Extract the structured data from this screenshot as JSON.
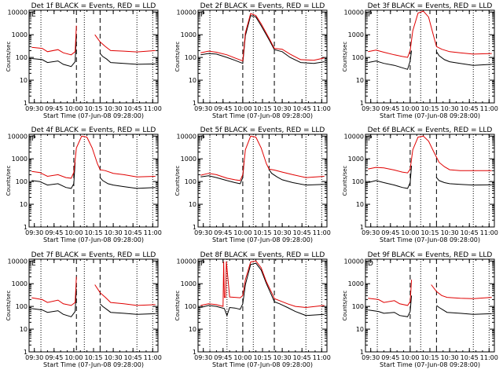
{
  "colors": {
    "events": "#000000",
    "lld": "#e00000",
    "axis": "#000000"
  },
  "common": {
    "ylabel": "Counts/sec",
    "xlabel": "Start Time (07-Jun-08 09:28:00)",
    "yticks": [
      "1",
      "10",
      "100",
      "1000",
      "10000"
    ],
    "ylim": [
      1,
      12000
    ],
    "yscale": "log",
    "xlim_minutes": [
      -2,
      96
    ]
  },
  "chart_data": [
    {
      "type": "line",
      "title": "Det 1f BLACK = Events, RED = LLD",
      "letter": "E",
      "xticks": [
        "09:30",
        "09:45",
        "10:00",
        "10:15",
        "10:30",
        "10:45",
        "11:00"
      ],
      "xticks_min": [
        2,
        17,
        32,
        47,
        62,
        77,
        92
      ],
      "dotted_x": [
        7,
        40,
        80,
        92
      ],
      "dashed_x": [
        34,
        52
      ],
      "series": [
        {
          "name": "Events",
          "color": "black",
          "x": [
            0,
            8,
            12,
            20,
            24,
            30,
            33,
            34
          ],
          "y": [
            90,
            80,
            60,
            70,
            50,
            40,
            65,
            900
          ],
          "x2": [
            52,
            54,
            57,
            60,
            70,
            80,
            94
          ],
          "y2": [
            150,
            110,
            85,
            60,
            55,
            50,
            52
          ]
        },
        {
          "name": "LLD",
          "color": "red",
          "x": [
            0,
            8,
            12,
            20,
            24,
            30,
            33,
            34
          ],
          "y": [
            280,
            250,
            180,
            220,
            160,
            130,
            180,
            2500
          ],
          "x2": [
            48,
            52,
            56,
            60,
            70,
            80,
            94
          ],
          "y2": [
            1000,
            480,
            300,
            200,
            190,
            175,
            200
          ]
        }
      ]
    },
    {
      "type": "line",
      "title": "Det 2f BLACK = Events, RED = LLD",
      "letter": "P",
      "xticks": [
        "09:30",
        "09:45",
        "10:00",
        "10:15",
        "10:30",
        "10:45",
        "11:00"
      ],
      "xticks_min": [
        2,
        17,
        32,
        47,
        62,
        77,
        92
      ],
      "dotted_x": [
        7,
        40,
        80,
        92
      ],
      "dashed_x": [
        32,
        56
      ],
      "series": [
        {
          "name": "Events",
          "color": "black",
          "x": [
            0,
            6,
            12,
            20,
            26,
            32,
            34,
            38,
            42,
            46,
            52,
            56,
            62,
            68,
            76,
            86,
            94
          ],
          "y": [
            130,
            150,
            140,
            100,
            75,
            55,
            900,
            7000,
            6000,
            2500,
            600,
            220,
            180,
            100,
            60,
            55,
            65
          ]
        },
        {
          "name": "LLD",
          "color": "red",
          "x": [
            0,
            6,
            12,
            20,
            26,
            32,
            34,
            38,
            42,
            46,
            52,
            56,
            62,
            68,
            76,
            86,
            94
          ],
          "y": [
            160,
            190,
            170,
            130,
            95,
            70,
            1200,
            8500,
            7000,
            3000,
            700,
            250,
            230,
            140,
            80,
            75,
            95
          ]
        }
      ]
    },
    {
      "type": "line",
      "title": "Det 3f BLACK = Events, RED = LLD",
      "letter": "P",
      "xticks": [
        "09:30",
        "09:45",
        "10:00",
        "10:15",
        "10:30",
        "10:45",
        "11:00"
      ],
      "xticks_min": [
        2,
        17,
        32,
        47,
        62,
        77,
        92
      ],
      "dotted_x": [
        7,
        40,
        80,
        92
      ],
      "dashed_x": [
        32,
        52
      ],
      "series": [
        {
          "name": "Events",
          "color": "black",
          "x": [
            0,
            6,
            12,
            20,
            26,
            30,
            32,
            33
          ],
          "y": [
            60,
            70,
            55,
            45,
            35,
            30,
            70,
            200
          ],
          "x2": [
            52,
            54,
            58,
            62,
            70,
            80,
            94
          ],
          "y2": [
            180,
            120,
            80,
            65,
            55,
            45,
            50
          ]
        },
        {
          "name": "LLD",
          "color": "red",
          "x": [
            0,
            6,
            12,
            20,
            26,
            30,
            32,
            34,
            38,
            42,
            46,
            50,
            52,
            56,
            62,
            70,
            80,
            94
          ],
          "y": [
            180,
            210,
            170,
            130,
            110,
            100,
            200,
            1500,
            9000,
            11000,
            6000,
            800,
            300,
            230,
            180,
            160,
            140,
            150
          ]
        }
      ]
    },
    {
      "type": "line",
      "title": "Det 4f BLACK = Events, RED = LLD",
      "letter": "P",
      "xticks": [
        "09:30",
        "09:45",
        "10:00",
        "10:15",
        "10:30",
        "10:45",
        "11:00"
      ],
      "xticks_min": [
        2,
        17,
        32,
        47,
        62,
        77,
        92
      ],
      "dotted_x": [
        7,
        40,
        80,
        92
      ],
      "dashed_x": [
        32,
        52
      ],
      "series": [
        {
          "name": "Events",
          "color": "black",
          "x": [
            0,
            6,
            12,
            20,
            26,
            30,
            32,
            33
          ],
          "y": [
            110,
            100,
            70,
            80,
            55,
            50,
            80,
            700
          ],
          "x2": [
            52,
            54,
            58,
            62,
            70,
            80,
            94
          ],
          "y2": [
            150,
            110,
            80,
            70,
            60,
            50,
            55
          ]
        },
        {
          "name": "LLD",
          "color": "red",
          "x": [
            0,
            6,
            12,
            20,
            26,
            30,
            32,
            34,
            38,
            42,
            46,
            50,
            52,
            56,
            62,
            70,
            80,
            94
          ],
          "y": [
            280,
            250,
            170,
            200,
            150,
            140,
            250,
            3000,
            10000,
            9000,
            3000,
            600,
            330,
            300,
            230,
            200,
            160,
            170
          ]
        }
      ]
    },
    {
      "type": "line",
      "title": "Det 5f BLACK = Events, RED = LLD",
      "letter": "P",
      "xticks": [
        "09:30",
        "09:45",
        "10:00",
        "10:15",
        "10:30",
        "10:45",
        "11:00"
      ],
      "xticks_min": [
        2,
        17,
        32,
        47,
        62,
        77,
        92
      ],
      "dotted_x": [
        7,
        40,
        80,
        92
      ],
      "dashed_x": [
        32,
        52
      ],
      "series": [
        {
          "name": "Events",
          "color": "black",
          "x": [
            0,
            6,
            12,
            20,
            26,
            30,
            32,
            33
          ],
          "y": [
            160,
            180,
            150,
            110,
            90,
            80,
            150,
            800
          ],
          "x2": [
            52,
            54,
            58,
            62,
            70,
            80,
            94
          ],
          "y2": [
            330,
            230,
            160,
            120,
            90,
            70,
            75
          ]
        },
        {
          "name": "LLD",
          "color": "red",
          "x": [
            0,
            6,
            12,
            20,
            26,
            30,
            32,
            34,
            38,
            42,
            46,
            50,
            52,
            56,
            62,
            70,
            80,
            94
          ],
          "y": [
            190,
            230,
            200,
            140,
            120,
            110,
            200,
            2500,
            10000,
            9000,
            3000,
            600,
            350,
            320,
            260,
            200,
            150,
            170
          ]
        }
      ]
    },
    {
      "type": "line",
      "title": "Det 6f BLACK = Events, RED = LLD",
      "letter": "P",
      "xticks": [
        "09:30",
        "09:45",
        "10:00",
        "10:15",
        "10:30",
        "10:45",
        "11:00"
      ],
      "xticks_min": [
        2,
        17,
        32,
        47,
        62,
        77,
        92
      ],
      "dotted_x": [
        7,
        40,
        80,
        92
      ],
      "dashed_x": [
        32,
        52
      ],
      "series": [
        {
          "name": "Events",
          "color": "black",
          "x": [
            0,
            6,
            12,
            20,
            26,
            30,
            32,
            33
          ],
          "y": [
            90,
            110,
            90,
            70,
            55,
            50,
            90,
            500
          ],
          "x2": [
            52,
            54,
            58,
            62,
            70,
            80,
            94
          ],
          "y2": [
            150,
            110,
            90,
            80,
            75,
            70,
            72
          ]
        },
        {
          "name": "LLD",
          "color": "red",
          "x": [
            0,
            6,
            12,
            20,
            26,
            30,
            32,
            34,
            38,
            42,
            46,
            50,
            54,
            58,
            62,
            70,
            80,
            94
          ],
          "y": [
            360,
            420,
            400,
            320,
            260,
            240,
            350,
            2500,
            9000,
            10000,
            6000,
            2000,
            700,
            450,
            330,
            300,
            300,
            300
          ]
        }
      ]
    },
    {
      "type": "line",
      "title": "Det 7f BLACK = Events, RED = LLD",
      "letter": "E",
      "xticks": [
        "09:30",
        "09:45",
        "10:00",
        "10:15",
        "10:30",
        "10:45",
        "11:00"
      ],
      "xticks_min": [
        2,
        17,
        32,
        47,
        62,
        77,
        92
      ],
      "dotted_x": [
        7,
        40,
        80,
        92
      ],
      "dashed_x": [
        34,
        52
      ],
      "series": [
        {
          "name": "Events",
          "color": "black",
          "x": [
            0,
            8,
            12,
            20,
            24,
            30,
            33,
            34
          ],
          "y": [
            80,
            70,
            55,
            65,
            45,
            35,
            60,
            600
          ],
          "x2": [
            52,
            54,
            57,
            60,
            70,
            80,
            94
          ],
          "y2": [
            130,
            100,
            75,
            55,
            50,
            45,
            48
          ]
        },
        {
          "name": "LLD",
          "color": "red",
          "x": [
            0,
            8,
            12,
            20,
            24,
            30,
            33,
            34
          ],
          "y": [
            240,
            200,
            150,
            190,
            130,
            110,
            150,
            2000
          ],
          "x2": [
            48,
            52,
            56,
            60,
            70,
            80,
            94
          ],
          "y2": [
            900,
            400,
            250,
            150,
            130,
            110,
            120
          ]
        }
      ]
    },
    {
      "type": "line",
      "title": "Det 8f BLACK = Events, RED = LLD",
      "letter": "P",
      "xticks": [
        "09:30",
        "09:45",
        "10:00",
        "10:15",
        "10:30",
        "10:45",
        "11:00"
      ],
      "xticks_min": [
        2,
        17,
        32,
        47,
        62,
        77,
        92
      ],
      "dotted_x": [
        7,
        20,
        40,
        80,
        92
      ],
      "dashed_x": [
        32,
        56
      ],
      "series": [
        {
          "name": "Events",
          "color": "black",
          "x": [
            0,
            6,
            12,
            18,
            20,
            22,
            26,
            30,
            32,
            34,
            38,
            42,
            46,
            50,
            54,
            56,
            60,
            66,
            72,
            80,
            94
          ],
          "y": [
            90,
            110,
            100,
            80,
            40,
            90,
            85,
            75,
            130,
            900,
            7000,
            8000,
            4000,
            1000,
            300,
            160,
            130,
            90,
            60,
            40,
            45
          ]
        },
        {
          "name": "LLD",
          "color": "red",
          "x": [
            0,
            6,
            12,
            17,
            17.5,
            18,
            19,
            19.5,
            22,
            26,
            30,
            32,
            34,
            38,
            42,
            46,
            50,
            54,
            56,
            60,
            66,
            72,
            80,
            94
          ],
          "y": [
            110,
            130,
            120,
            100,
            9500,
            250,
            250,
            9500,
            260,
            250,
            240,
            300,
            1500,
            9000,
            10000,
            5000,
            1200,
            400,
            220,
            180,
            130,
            100,
            90,
            110
          ]
        }
      ]
    },
    {
      "type": "line",
      "title": "Det 9f BLACK = Events, RED = LLD",
      "letter": "D",
      "xticks": [
        "09:30",
        "09:45",
        "10:00",
        "10:15",
        "10:30",
        "10:45",
        "11:00"
      ],
      "xticks_min": [
        2,
        17,
        32,
        47,
        62,
        77,
        92
      ],
      "dotted_x": [
        7,
        40,
        80,
        92
      ],
      "dashed_x": [
        32,
        52
      ],
      "series": [
        {
          "name": "Events",
          "color": "black",
          "x": [
            0,
            8,
            12,
            20,
            24,
            30,
            32,
            33
          ],
          "y": [
            70,
            60,
            50,
            55,
            40,
            35,
            60,
            300
          ],
          "x2": [
            52,
            54,
            57,
            60,
            70,
            80,
            94
          ],
          "y2": [
            110,
            90,
            70,
            55,
            50,
            45,
            48
          ]
        },
        {
          "name": "LLD",
          "color": "red",
          "x": [
            0,
            8,
            12,
            20,
            24,
            30,
            32,
            33
          ],
          "y": [
            230,
            200,
            150,
            180,
            130,
            110,
            160,
            1500
          ],
          "x2": [
            48,
            52,
            56,
            60,
            70,
            80,
            94
          ],
          "y2": [
            900,
            450,
            300,
            250,
            230,
            220,
            250
          ]
        }
      ]
    }
  ]
}
